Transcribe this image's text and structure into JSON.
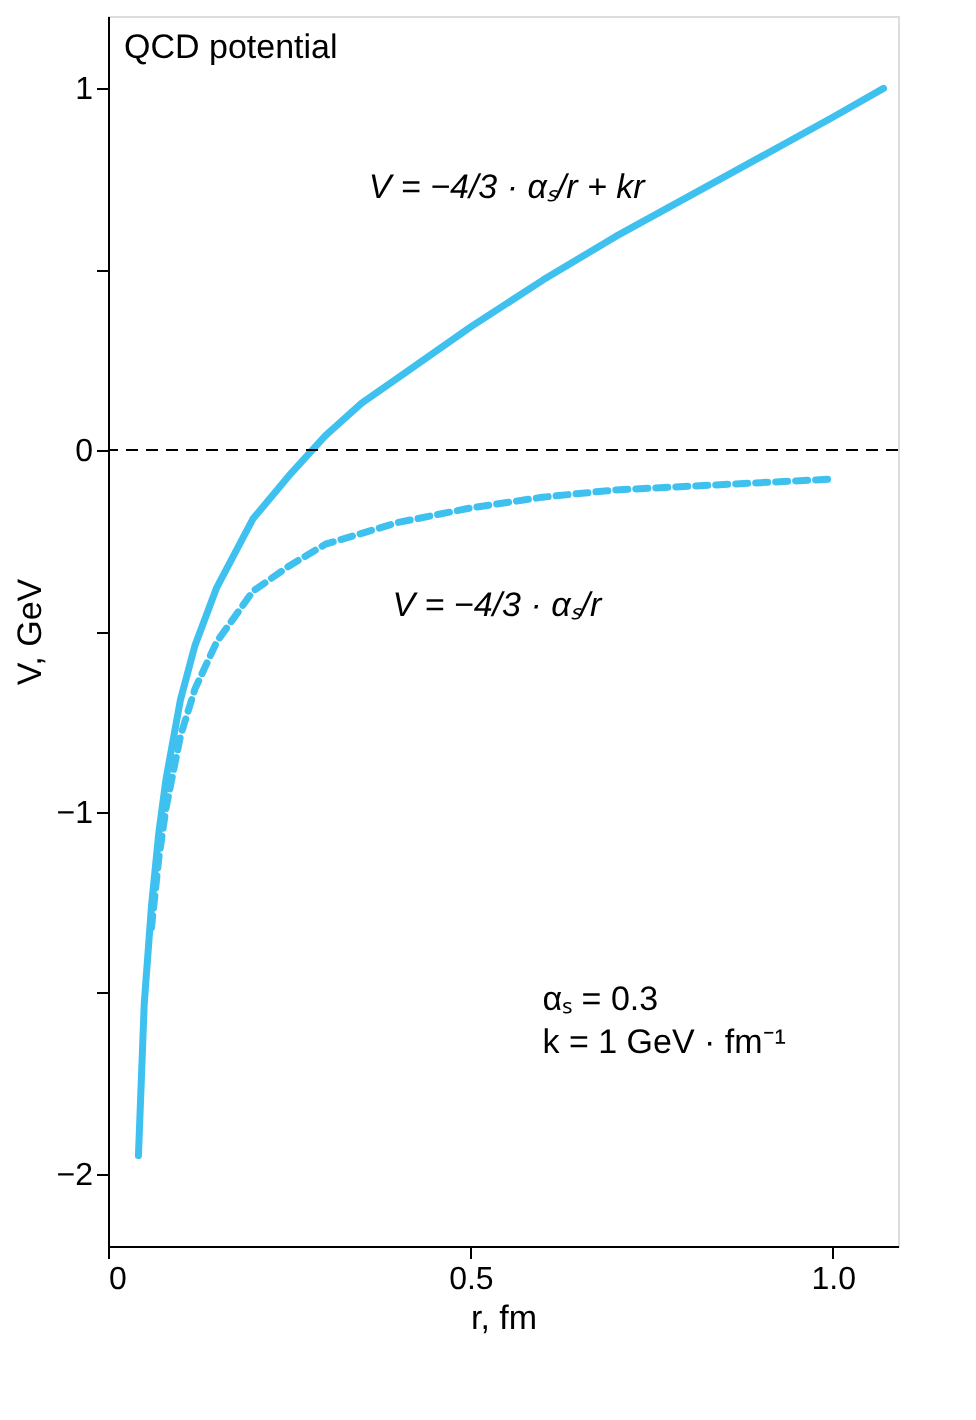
{
  "chart_data": {
    "type": "line",
    "title": "QCD potential",
    "xlabel": "r, fm",
    "ylabel": "V, GeV",
    "xlim": [
      0,
      1.09
    ],
    "ylim": [
      -2.2,
      1.2
    ],
    "xticks": [
      0,
      0.5,
      {
        "value": 1.0,
        "label": "1.0"
      }
    ],
    "yticks": [
      {
        "value": -2,
        "label": "−2"
      },
      {
        "value": -1.5,
        "label": null
      },
      {
        "value": -1,
        "label": "−1"
      },
      {
        "value": -0.5,
        "label": null
      },
      0,
      {
        "value": 0.5,
        "label": null
      },
      1
    ],
    "grid": false,
    "marker": "none",
    "series": [
      {
        "color": "#3fc1f0",
        "line_style": "solid",
        "x": [
          0.042,
          0.05,
          0.06,
          0.07,
          0.08,
          0.1,
          0.12,
          0.15,
          0.2,
          0.25,
          0.3,
          0.35,
          0.4,
          0.5,
          0.6,
          0.7,
          0.8,
          0.9,
          1.0,
          1.07
        ],
        "values": [
          -1.95,
          -1.53,
          -1.26,
          -1.06,
          -0.91,
          -0.69,
          -0.54,
          -0.38,
          -0.19,
          -0.07,
          0.04,
          0.13,
          0.2,
          0.34,
          0.47,
          0.59,
          0.7,
          0.81,
          0.92,
          1.0
        ]
      },
      {
        "color": "#3fc1f0",
        "line_style": "dashed",
        "x": [
          0.06,
          0.07,
          0.08,
          0.1,
          0.12,
          0.15,
          0.2,
          0.25,
          0.3,
          0.4,
          0.5,
          0.6,
          0.7,
          0.8,
          0.9,
          1.0
        ],
        "values": [
          -1.32,
          -1.13,
          -0.99,
          -0.79,
          -0.66,
          -0.53,
          -0.39,
          -0.32,
          -0.26,
          -0.2,
          -0.16,
          -0.13,
          -0.11,
          -0.1,
          -0.09,
          -0.08
        ]
      }
    ],
    "ref_lines": [
      {
        "axis": "y",
        "value": 0,
        "color": "#000000",
        "line_style": "dashed"
      }
    ],
    "annotations": [
      "V = −4/3 · αₛ/r + kr",
      "V = −4/3 · αₛ/r",
      "αₛ = 0.3",
      "k = 1 GeV · fm⁻¹"
    ]
  }
}
